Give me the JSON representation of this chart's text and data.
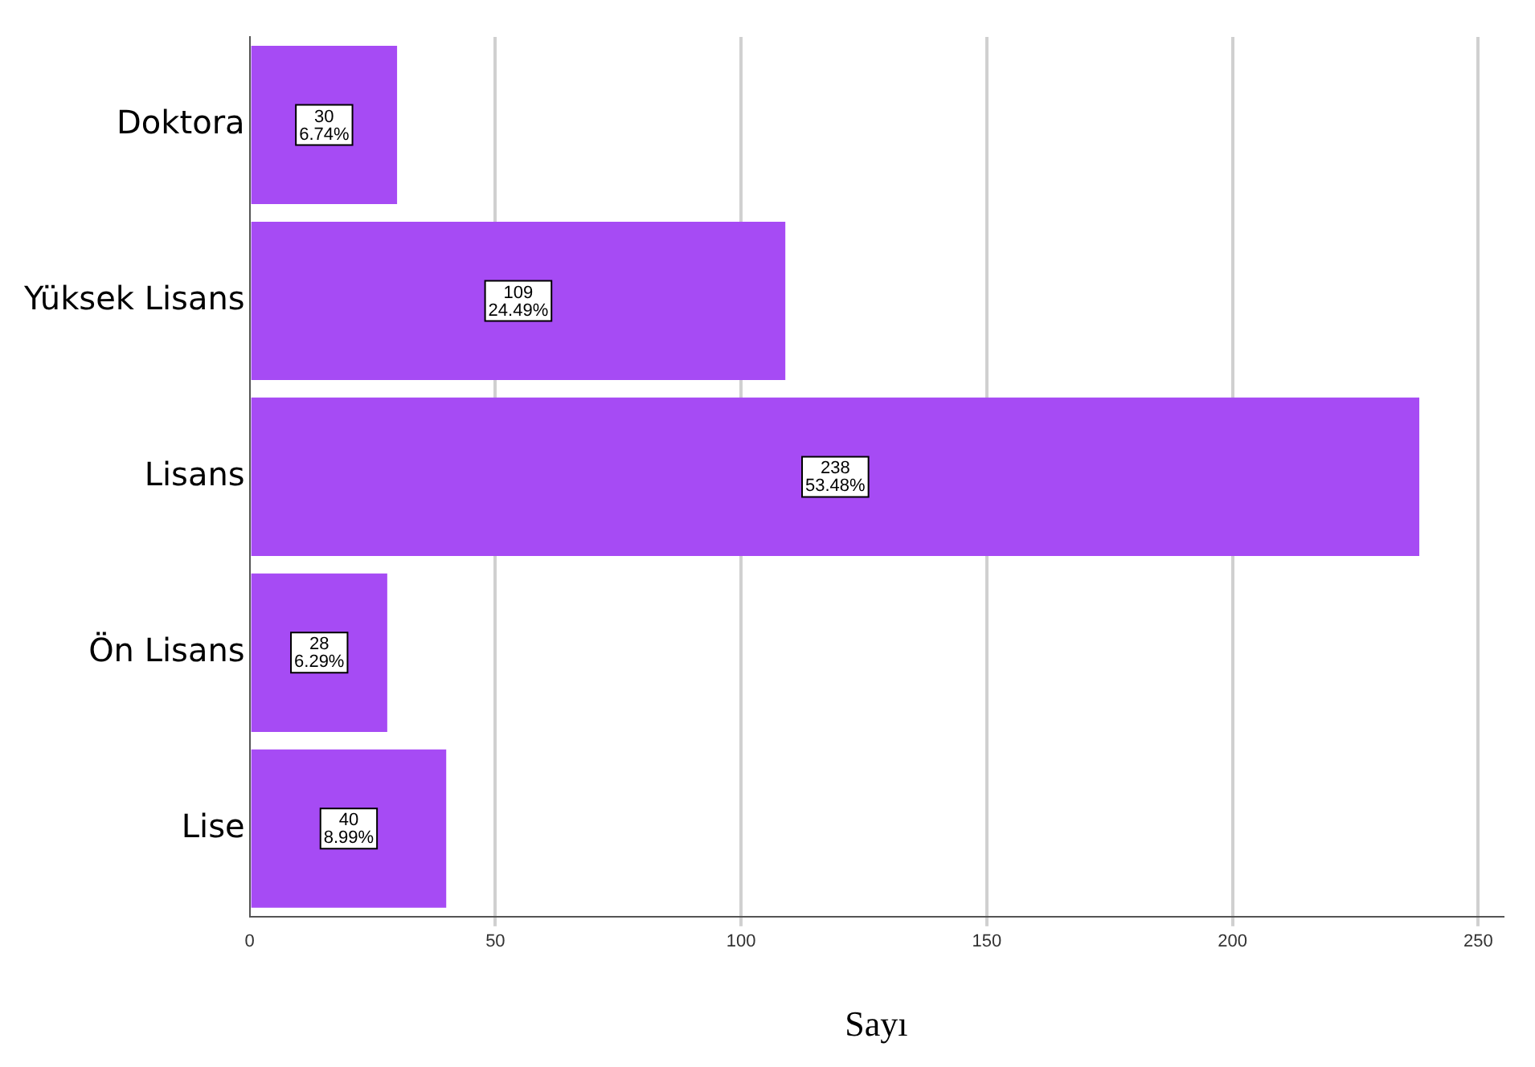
{
  "chart_data": {
    "type": "bar",
    "orientation": "horizontal",
    "xlabel": "Sayı",
    "categories": [
      "Doktora",
      "Yüksek Lisans",
      "Lisans",
      "Ön Lisans",
      "Lise"
    ],
    "values": [
      30,
      109,
      238,
      28,
      40
    ],
    "value_labels": [
      "30\n6.74%",
      "109\n24.49%",
      "238\n53.48%",
      "28\n6.29%",
      "40\n8.99%"
    ],
    "color": "#a64bf4",
    "xlim": [
      0,
      255
    ],
    "xticks": [
      0,
      50,
      100,
      150,
      200,
      250
    ],
    "grid": "x",
    "legend": false
  }
}
